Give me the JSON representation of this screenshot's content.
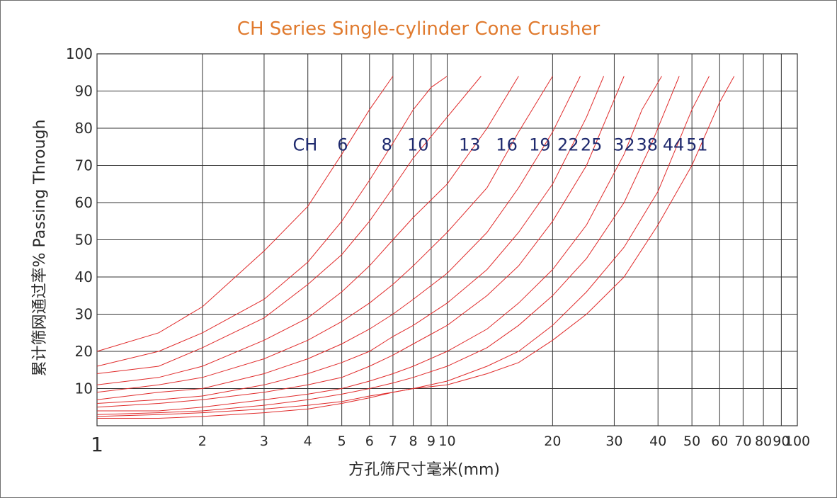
{
  "chart_data": {
    "type": "line",
    "title": "CH Series Single-cylinder Cone Crusher",
    "xlabel": "方孔筛尺寸毫米(mm)",
    "ylabel": "累计筛网通过率%  Passing Through",
    "x_scale": "log",
    "xlim": [
      1,
      100
    ],
    "ylim": [
      0,
      100
    ],
    "grid": true,
    "x_ticks": [
      "1",
      "2",
      "3",
      "4",
      "5",
      "6",
      "7",
      "8",
      "9",
      "10",
      "20",
      "30",
      "40",
      "50",
      "60",
      "70",
      "80",
      "90",
      "100"
    ],
    "y_ticks": [
      "10",
      "20",
      "30",
      "40",
      "50",
      "60",
      "70",
      "80",
      "90",
      "100"
    ],
    "model_prefix": "CH",
    "curve_color": "#e02b2b",
    "label_color": "#1f2a6e",
    "series": [
      {
        "name": "6",
        "x": [
          1,
          1.5,
          2,
          3,
          4,
          5,
          6,
          7
        ],
        "y": [
          20,
          25,
          32,
          47,
          59,
          73,
          85,
          94
        ]
      },
      {
        "name": "8",
        "x": [
          1,
          1.5,
          2,
          3,
          4,
          5,
          6,
          7,
          8,
          9,
          10
        ],
        "y": [
          16,
          20,
          25,
          34,
          44,
          55,
          66,
          76,
          85,
          91,
          94
        ]
      },
      {
        "name": "10",
        "x": [
          1,
          1.5,
          2,
          3,
          4,
          5,
          6,
          7,
          8,
          10,
          12.5
        ],
        "y": [
          14,
          16,
          21,
          29,
          38,
          46,
          55,
          64,
          72,
          83,
          94
        ]
      },
      {
        "name": "13",
        "x": [
          1,
          1.5,
          2,
          3,
          4,
          5,
          6,
          7,
          8,
          10,
          13,
          16
        ],
        "y": [
          11,
          13,
          16,
          23,
          29,
          36,
          43,
          50,
          56,
          65,
          80,
          94
        ]
      },
      {
        "name": "16",
        "x": [
          1,
          1.5,
          2,
          3,
          4,
          5,
          6,
          7,
          8,
          10,
          13,
          16,
          20
        ],
        "y": [
          9,
          11,
          13,
          18,
          23,
          28,
          33,
          38,
          43,
          52,
          64,
          79,
          94
        ]
      },
      {
        "name": "19",
        "x": [
          1,
          1.5,
          2,
          3,
          4,
          5,
          6,
          7,
          8,
          10,
          13,
          16,
          20,
          24
        ],
        "y": [
          7,
          9,
          10,
          14,
          18,
          22,
          26,
          30,
          34,
          41,
          52,
          64,
          79,
          94
        ]
      },
      {
        "name": "22",
        "x": [
          1,
          1.5,
          2,
          3,
          4,
          5,
          6,
          7,
          8,
          10,
          13,
          16,
          20,
          25,
          28
        ],
        "y": [
          6,
          7,
          8,
          11,
          14,
          17,
          20,
          24,
          27,
          33,
          42,
          52,
          65,
          83,
          94
        ]
      },
      {
        "name": "25",
        "x": [
          1,
          1.5,
          2,
          3,
          4,
          5,
          6,
          7,
          8,
          10,
          13,
          16,
          20,
          25,
          32
        ],
        "y": [
          5,
          6,
          7,
          9,
          11,
          13,
          16,
          19,
          22,
          27,
          35,
          43,
          55,
          70,
          94
        ]
      },
      {
        "name": "32",
        "x": [
          1,
          1.5,
          2,
          3,
          4,
          5,
          6,
          7,
          8,
          10,
          13,
          16,
          20,
          25,
          32,
          36,
          41
        ],
        "y": [
          4,
          4,
          5,
          7,
          8.5,
          10,
          12,
          14,
          16,
          20,
          26,
          33,
          42,
          54,
          73,
          85,
          94
        ]
      },
      {
        "name": "38",
        "x": [
          1,
          1.5,
          2,
          3,
          4,
          5,
          6,
          7,
          8,
          10,
          13,
          16,
          20,
          25,
          32,
          38,
          46
        ],
        "y": [
          3,
          3.5,
          4,
          5.5,
          7,
          8.5,
          10,
          11.5,
          13,
          16,
          21,
          27,
          35,
          45,
          60,
          75,
          94
        ]
      },
      {
        "name": "44",
        "x": [
          1,
          1.5,
          2,
          3,
          4,
          5,
          6,
          7,
          8,
          10,
          13,
          16,
          20,
          25,
          32,
          40,
          50,
          56
        ],
        "y": [
          2.5,
          3,
          3.5,
          4.5,
          5.5,
          6.5,
          8,
          9,
          10,
          12,
          16,
          20,
          27,
          36,
          48,
          63,
          85,
          94
        ]
      },
      {
        "name": "51",
        "x": [
          1,
          1.5,
          2,
          3,
          4,
          5,
          6,
          7,
          8,
          10,
          13,
          16,
          20,
          25,
          32,
          40,
          50,
          60,
          66
        ],
        "y": [
          2,
          2,
          2.5,
          3.5,
          4.5,
          6,
          7.5,
          9,
          10,
          11,
          14,
          17,
          23,
          30,
          40,
          54,
          70,
          87,
          94
        ]
      }
    ]
  }
}
